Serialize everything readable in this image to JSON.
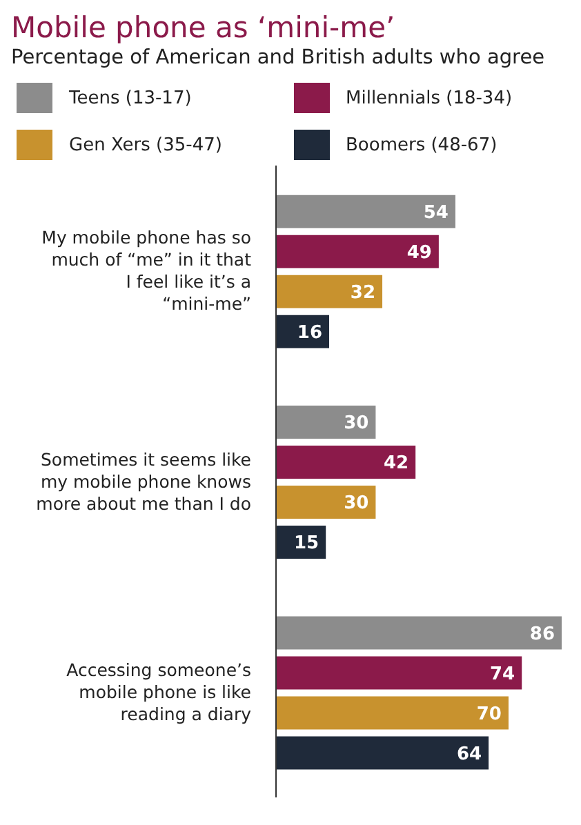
{
  "chart_data": {
    "type": "bar",
    "orientation": "horizontal",
    "title": "Mobile phone as ‘mini-me’",
    "subtitle": "Percentage of American and British adults who agree",
    "categories": [
      "My mobile phone has so much of “me” in it that I feel like it’s a “mini-me”",
      "Sometimes it seems like my mobile phone knows more about me than I do",
      "Accessing someone’s mobile phone is like reading a diary"
    ],
    "series": [
      {
        "name": "Teens (13-17)",
        "color": "#8c8c8c",
        "values": [
          54,
          30,
          86
        ]
      },
      {
        "name": "Millennials (18-34)",
        "color": "#8b1a4a",
        "values": [
          49,
          42,
          74
        ]
      },
      {
        "name": "Gen Xers (35-47)",
        "color": "#c8922e",
        "values": [
          32,
          30,
          70
        ]
      },
      {
        "name": "Boomers (48-67)",
        "color": "#1f2a3a",
        "values": [
          16,
          15,
          64
        ]
      }
    ],
    "data_labels": true,
    "legend": "top",
    "grid": false
  }
}
